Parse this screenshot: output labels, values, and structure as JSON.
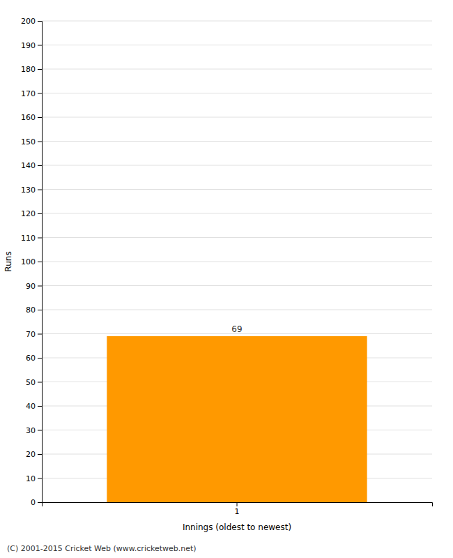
{
  "chart_data": {
    "type": "bar",
    "xlabel": "Innings (oldest to newest)",
    "ylabel": "Runs",
    "annotations": [
      "(C) 2001-2015 Cricket Web (www.cricketweb.net)"
    ],
    "categories": [
      1
    ],
    "values": [
      69
    ],
    "color": "#FF9900",
    "ylim": [
      0,
      200
    ],
    "yticks": [
      0,
      10,
      20,
      30,
      40,
      50,
      60,
      70,
      80,
      90,
      100,
      110,
      120,
      130,
      140,
      150,
      160,
      170,
      180,
      190,
      200
    ],
    "grid": true,
    "data_labels": true
  }
}
